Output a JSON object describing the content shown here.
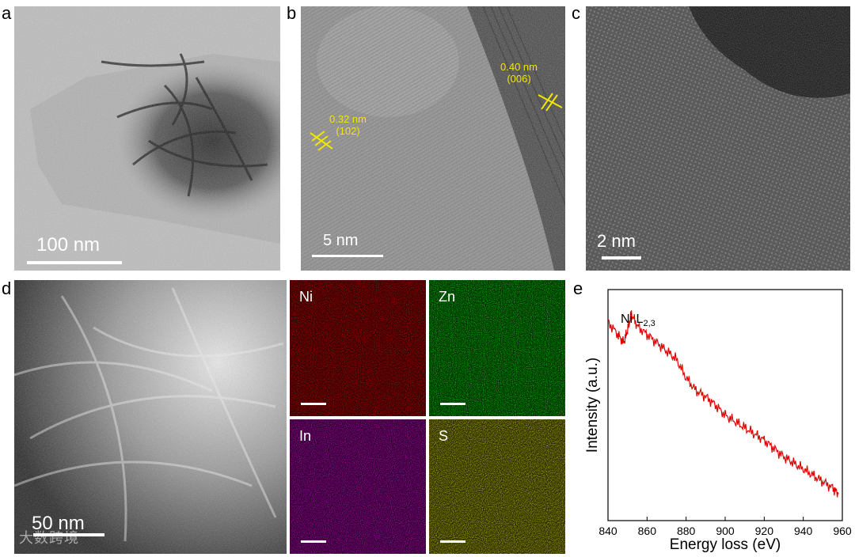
{
  "panels": {
    "a": {
      "label": "a",
      "scale": "100 nm"
    },
    "b": {
      "label": "b",
      "scale": "5 nm",
      "annotations": [
        {
          "spacing": "0.32 nm",
          "plane": "(102)"
        },
        {
          "spacing": "0.40 nm",
          "plane": "(006)"
        }
      ]
    },
    "c": {
      "label": "c",
      "scale": "2 nm"
    },
    "d": {
      "label": "d",
      "scale": "50 nm",
      "maps": [
        {
          "element": "Ni",
          "color": "#d01010"
        },
        {
          "element": "Zn",
          "color": "#10b010"
        },
        {
          "element": "In",
          "color": "#c010c0"
        },
        {
          "element": "S",
          "color": "#c8c010"
        }
      ]
    },
    "e": {
      "label": "e"
    }
  },
  "watermark": "大数跨境",
  "chart_data": {
    "type": "line",
    "title": "",
    "xlabel": "Energy loss (eV)",
    "ylabel": "Intensity (a.u.)",
    "xlim": [
      840,
      960
    ],
    "x_ticks": [
      840,
      860,
      880,
      900,
      920,
      940,
      960
    ],
    "annotation": {
      "text": "Ni L",
      "subscript": "2,3"
    },
    "series": [
      {
        "color": "#e00000",
        "x": [
          840,
          845,
          848,
          850,
          852,
          855,
          860,
          865,
          870,
          875,
          880,
          885,
          890,
          895,
          900,
          905,
          910,
          915,
          920,
          925,
          930,
          935,
          940,
          945,
          950,
          955,
          958
        ],
        "y": [
          0.92,
          0.86,
          0.82,
          0.88,
          0.96,
          0.9,
          0.86,
          0.82,
          0.78,
          0.74,
          0.65,
          0.59,
          0.56,
          0.52,
          0.47,
          0.44,
          0.41,
          0.38,
          0.35,
          0.31,
          0.27,
          0.24,
          0.21,
          0.18,
          0.15,
          0.12,
          0.09
        ]
      }
    ]
  }
}
